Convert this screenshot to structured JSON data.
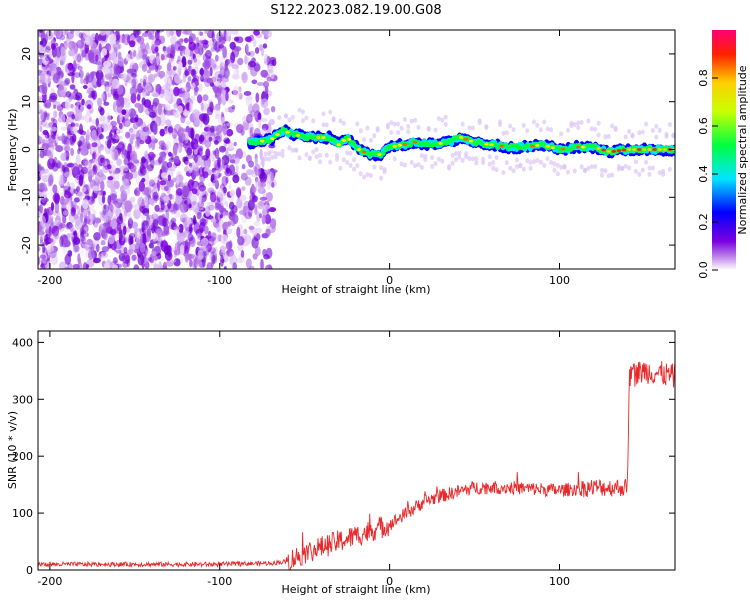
{
  "title": "S122.2023.082.19.00.G08",
  "chart_data": [
    {
      "type": "heatmap",
      "xlabel": "Height of straight line (km)",
      "ylabel": "Frequency (Hz)",
      "xlim": [
        -207,
        168
      ],
      "ylim": [
        -25,
        25
      ],
      "xticks": [
        -200,
        -100,
        0,
        100
      ],
      "xtick_labels": [
        "-200",
        "-100",
        "0",
        "100"
      ],
      "yticks": [
        -20,
        -10,
        0,
        10,
        20
      ],
      "ytick_labels": [
        "-20",
        "-10",
        "0",
        "10",
        "20"
      ],
      "colorbar": {
        "label": "Normalized spectral amplitude",
        "range": [
          0,
          1
        ],
        "ticks": [
          0.0,
          0.2,
          0.4,
          0.6,
          0.8
        ],
        "tick_labels": [
          "0.0",
          "0.2",
          "0.4",
          "0.6",
          "0.8"
        ],
        "colors": [
          "#ffffff",
          "#8a2be2",
          "#0000ff",
          "#00ffff",
          "#00ff00",
          "#ffff00",
          "#ff0000",
          "#ff00aa"
        ]
      },
      "noise_region_x": [
        -207,
        -68
      ],
      "signal_ridge": {
        "x": [
          -80,
          -70,
          -63,
          -55,
          -45,
          -35,
          -30,
          -25,
          -18,
          -12,
          -5,
          0,
          8,
          15,
          25,
          35,
          42,
          50,
          60,
          70,
          80,
          90,
          100,
          110,
          120,
          130,
          140,
          150,
          160,
          168
        ],
        "frequency_hz": [
          1.5,
          2.0,
          4.0,
          3.0,
          2.5,
          2.5,
          1.0,
          2.5,
          0.0,
          -1.0,
          -1.0,
          0.5,
          1.0,
          1.5,
          1.0,
          1.5,
          2.5,
          1.5,
          1.0,
          0.5,
          0.5,
          1.0,
          0.0,
          0.5,
          0.5,
          -0.5,
          0.0,
          0.0,
          0.0,
          0.0
        ]
      }
    },
    {
      "type": "line",
      "xlabel": "Height of straight line (km)",
      "ylabel": "SNR (10 * v/v)",
      "xlim": [
        -207,
        168
      ],
      "ylim": [
        0,
        420
      ],
      "xticks": [
        -200,
        -100,
        0,
        100
      ],
      "xtick_labels": [
        "-200",
        "-100",
        "0",
        "100"
      ],
      "yticks": [
        0,
        100,
        200,
        300,
        400
      ],
      "ytick_labels": [
        "0",
        "100",
        "200",
        "300",
        "400"
      ],
      "color": "#e8292b",
      "series": [
        {
          "x": [
            -207,
            -150,
            -100,
            -70,
            -60,
            -50,
            -40,
            -30,
            -20,
            -10,
            0,
            10,
            20,
            30,
            50,
            70,
            100,
            120,
            130,
            140,
            141,
            150,
            160,
            168
          ],
          "values": [
            10,
            10,
            10,
            12,
            15,
            30,
            40,
            50,
            60,
            70,
            80,
            100,
            120,
            130,
            145,
            145,
            140,
            145,
            145,
            145,
            340,
            350,
            345,
            340
          ]
        }
      ]
    }
  ]
}
